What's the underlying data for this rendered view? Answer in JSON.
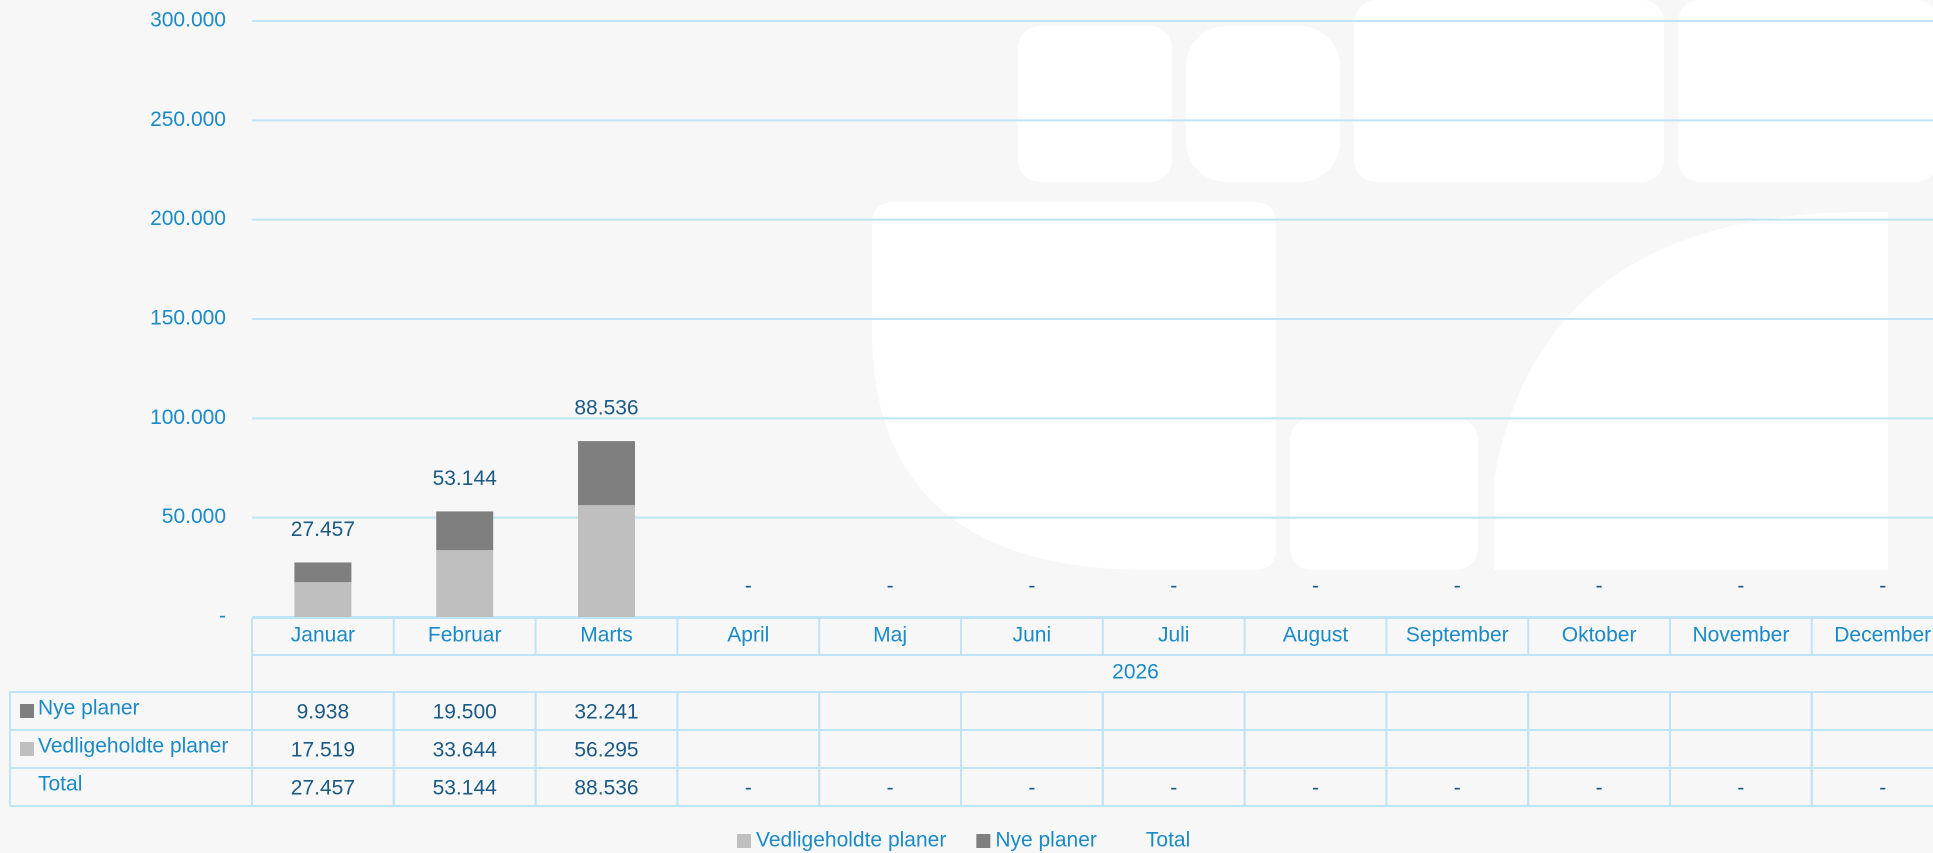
{
  "chart_data": {
    "type": "bar",
    "stacked": true,
    "categories": [
      "Januar",
      "Februar",
      "Marts",
      "April",
      "Maj",
      "Juni",
      "Juli",
      "August",
      "September",
      "Oktober",
      "November",
      "December"
    ],
    "category_group": "2026",
    "series": [
      {
        "name": "Vedligeholdte planer",
        "color": "#bfbfbf",
        "values": [
          17519,
          33644,
          56295,
          null,
          null,
          null,
          null,
          null,
          null,
          null,
          null,
          null
        ],
        "value_labels": [
          "17.519",
          "33.644",
          "56.295",
          null,
          null,
          null,
          null,
          null,
          null,
          null,
          null,
          null
        ]
      },
      {
        "name": "Nye planer",
        "color": "#7f7f7f",
        "values": [
          9938,
          19500,
          32241,
          null,
          null,
          null,
          null,
          null,
          null,
          null,
          null,
          null
        ],
        "value_labels": [
          "9.938",
          "19.500",
          "32.241",
          null,
          null,
          null,
          null,
          null,
          null,
          null,
          null,
          null
        ]
      }
    ],
    "total": {
      "name": "Total",
      "values": [
        27457,
        53144,
        88536,
        null,
        null,
        null,
        null,
        null,
        null,
        null,
        null,
        null
      ],
      "value_labels": [
        "27.457",
        "53.144",
        "88.536",
        "-",
        "-",
        "-",
        "-",
        "-",
        "-",
        "-",
        "-",
        "-"
      ]
    },
    "ylim": [
      0,
      300000
    ],
    "yticks": [
      {
        "value": 0,
        "label": "-"
      },
      {
        "value": 50000,
        "label": "50.000"
      },
      {
        "value": 100000,
        "label": "100.000"
      },
      {
        "value": 150000,
        "label": "150.000"
      },
      {
        "value": 200000,
        "label": "200.000"
      },
      {
        "value": 250000,
        "label": "250.000"
      },
      {
        "value": 300000,
        "label": "300.000"
      }
    ],
    "grid": true
  }
}
